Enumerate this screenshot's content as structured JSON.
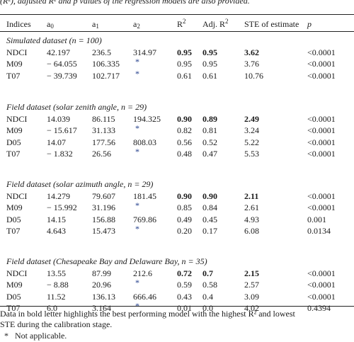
{
  "caption_fragment": "(R²), adjusted R² and p values of the regression models are also provided.",
  "columns": {
    "indices": "Indices",
    "a0_base": "a",
    "a0_sub": "0",
    "a1_base": "a",
    "a1_sub": "1",
    "a2_base": "a",
    "a2_sub": "2",
    "r2_base": "R",
    "r2_sup": "2",
    "adjr2_base": "Adj. R",
    "adjr2_sup": "2",
    "ste": "STE of estimate",
    "p": "p"
  },
  "sections": [
    {
      "title": "Simulated dataset (n = 100)",
      "rows": [
        {
          "index": "NDCI",
          "a0": "42.197",
          "a1": "236.5",
          "a2": "314.97",
          "r2": "0.95",
          "adj": "0.95",
          "ste": "3.62",
          "p": "<0.0001",
          "bold": true
        },
        {
          "index": "M09",
          "a0": "− 64.055",
          "a1": "106.335",
          "a2": "*",
          "r2": "0.95",
          "adj": "0.95",
          "ste": "3.76",
          "p": "<0.0001",
          "bold": false
        },
        {
          "index": "T07",
          "a0": "− 39.739",
          "a1": "102.717",
          "a2": "*",
          "r2": "0.61",
          "adj": "0.61",
          "ste": "10.76",
          "p": "<0.0001",
          "bold": false
        }
      ]
    },
    {
      "title": "Field dataset (solar zenith angle, n = 29)",
      "rows": [
        {
          "index": "NDCI",
          "a0": "14.039",
          "a1": "86.115",
          "a2": "194.325",
          "r2": "0.90",
          "adj": "0.89",
          "ste": "2.49",
          "p": "<0.0001",
          "bold": true
        },
        {
          "index": "M09",
          "a0": "− 15.617",
          "a1": "31.133",
          "a2": "*",
          "r2": "0.82",
          "adj": "0.81",
          "ste": "3.24",
          "p": "<0.0001",
          "bold": false
        },
        {
          "index": "D05",
          "a0": "14.07",
          "a1": "177.56",
          "a2": "808.03",
          "r2": "0.56",
          "adj": "0.52",
          "ste": "5.22",
          "p": "<0.0001",
          "bold": false
        },
        {
          "index": "T07",
          "a0": "− 1.832",
          "a1": "26.56",
          "a2": "*",
          "r2": "0.48",
          "adj": "0.47",
          "ste": "5.53",
          "p": "<0.0001",
          "bold": false
        }
      ]
    },
    {
      "title": "Field dataset (solar azimuth angle, n = 29)",
      "rows": [
        {
          "index": "NDCI",
          "a0": "14.279",
          "a1": "79.607",
          "a2": "181.45",
          "r2": "0.90",
          "adj": "0.90",
          "ste": "2.11",
          "p": "<0.0001",
          "bold": true
        },
        {
          "index": "M09",
          "a0": "− 15.992",
          "a1": "31.196",
          "a2": "*",
          "r2": "0.85",
          "adj": "0.84",
          "ste": "2.61",
          "p": "<0.0001",
          "bold": false
        },
        {
          "index": "D05",
          "a0": "14.15",
          "a1": "156.88",
          "a2": "769.86",
          "r2": "0.49",
          "adj": "0.45",
          "ste": "4.93",
          "p": "0.001",
          "bold": false
        },
        {
          "index": "T07",
          "a0": "4.643",
          "a1": "15.473",
          "a2": "*",
          "r2": "0.20",
          "adj": "0.17",
          "ste": "6.08",
          "p": "0.0134",
          "bold": false
        }
      ]
    },
    {
      "title": "Field dataset (Chesapeake Bay and Delaware Bay, n = 35)",
      "rows": [
        {
          "index": "NDCI",
          "a0": "13.55",
          "a1": "87.99",
          "a2": "212.6",
          "r2": "0.72",
          "adj": "0.7",
          "ste": "2.15",
          "p": "<0.0001",
          "bold": true
        },
        {
          "index": "M09",
          "a0": "− 8.88",
          "a1": "20.96",
          "a2": "*",
          "r2": "0.59",
          "adj": "0.58",
          "ste": "2.57",
          "p": "<0.0001",
          "bold": false
        },
        {
          "index": "D05",
          "a0": "11.52",
          "a1": "136.13",
          "a2": "666.46",
          "r2": "0.43",
          "adj": "0.4",
          "ste": "3.09",
          "p": "<0.0001",
          "bold": false
        },
        {
          "index": "T07",
          "a0": "6.0",
          "a1": "3.164",
          "a2": "*",
          "r2": "0.01",
          "adj": "0.0",
          "ste": "4.02",
          "p": "0.4394",
          "bold": false
        }
      ]
    }
  ],
  "footnote_line1": "Data in bold letter highlights the best performing model with the highest R² and lowest",
  "footnote_line2": "STE during the calibration stage.",
  "footnote_star": "*",
  "footnote_na": "Not applicable."
}
